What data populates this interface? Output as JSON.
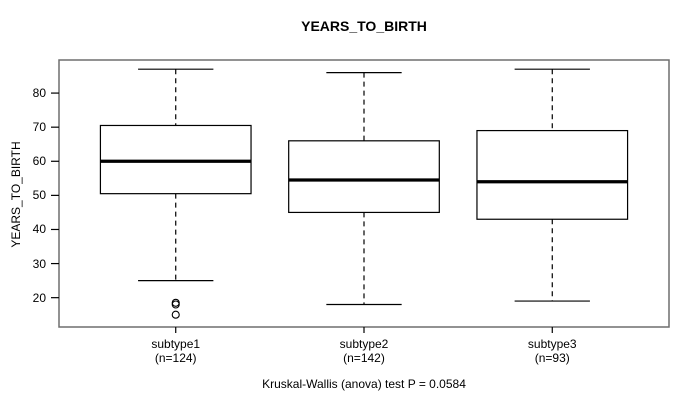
{
  "chart_data": {
    "type": "boxplot",
    "title": "YEARS_TO_BIRTH",
    "ylabel": "YEARS_TO_BIRTH",
    "xlabel": "",
    "footnote": "Kruskal-Wallis (anova) test P = 0.0584",
    "ylim": [
      11.4,
      89.7
    ],
    "yticks": [
      20,
      30,
      40,
      50,
      60,
      70,
      80
    ],
    "grid": false,
    "legend": "none",
    "colors": {
      "line": "#000000",
      "frame": "#6e6e6e",
      "background": "#ffffff"
    },
    "groups": [
      {
        "label": "subtype1",
        "count_label": "(n=124)",
        "n": 124,
        "whisker_low": 25,
        "q1": 50.5,
        "median": 60,
        "q3": 70.5,
        "whisker_high": 87,
        "outliers": [
          18.5,
          18,
          15
        ]
      },
      {
        "label": "subtype2",
        "count_label": "(n=142)",
        "n": 142,
        "whisker_low": 18,
        "q1": 45,
        "median": 54.5,
        "q3": 66,
        "whisker_high": 86,
        "outliers": []
      },
      {
        "label": "subtype3",
        "count_label": "(n=93)",
        "n": 93,
        "whisker_low": 19,
        "q1": 43,
        "median": 54,
        "q3": 69,
        "whisker_high": 87,
        "outliers": []
      }
    ]
  }
}
